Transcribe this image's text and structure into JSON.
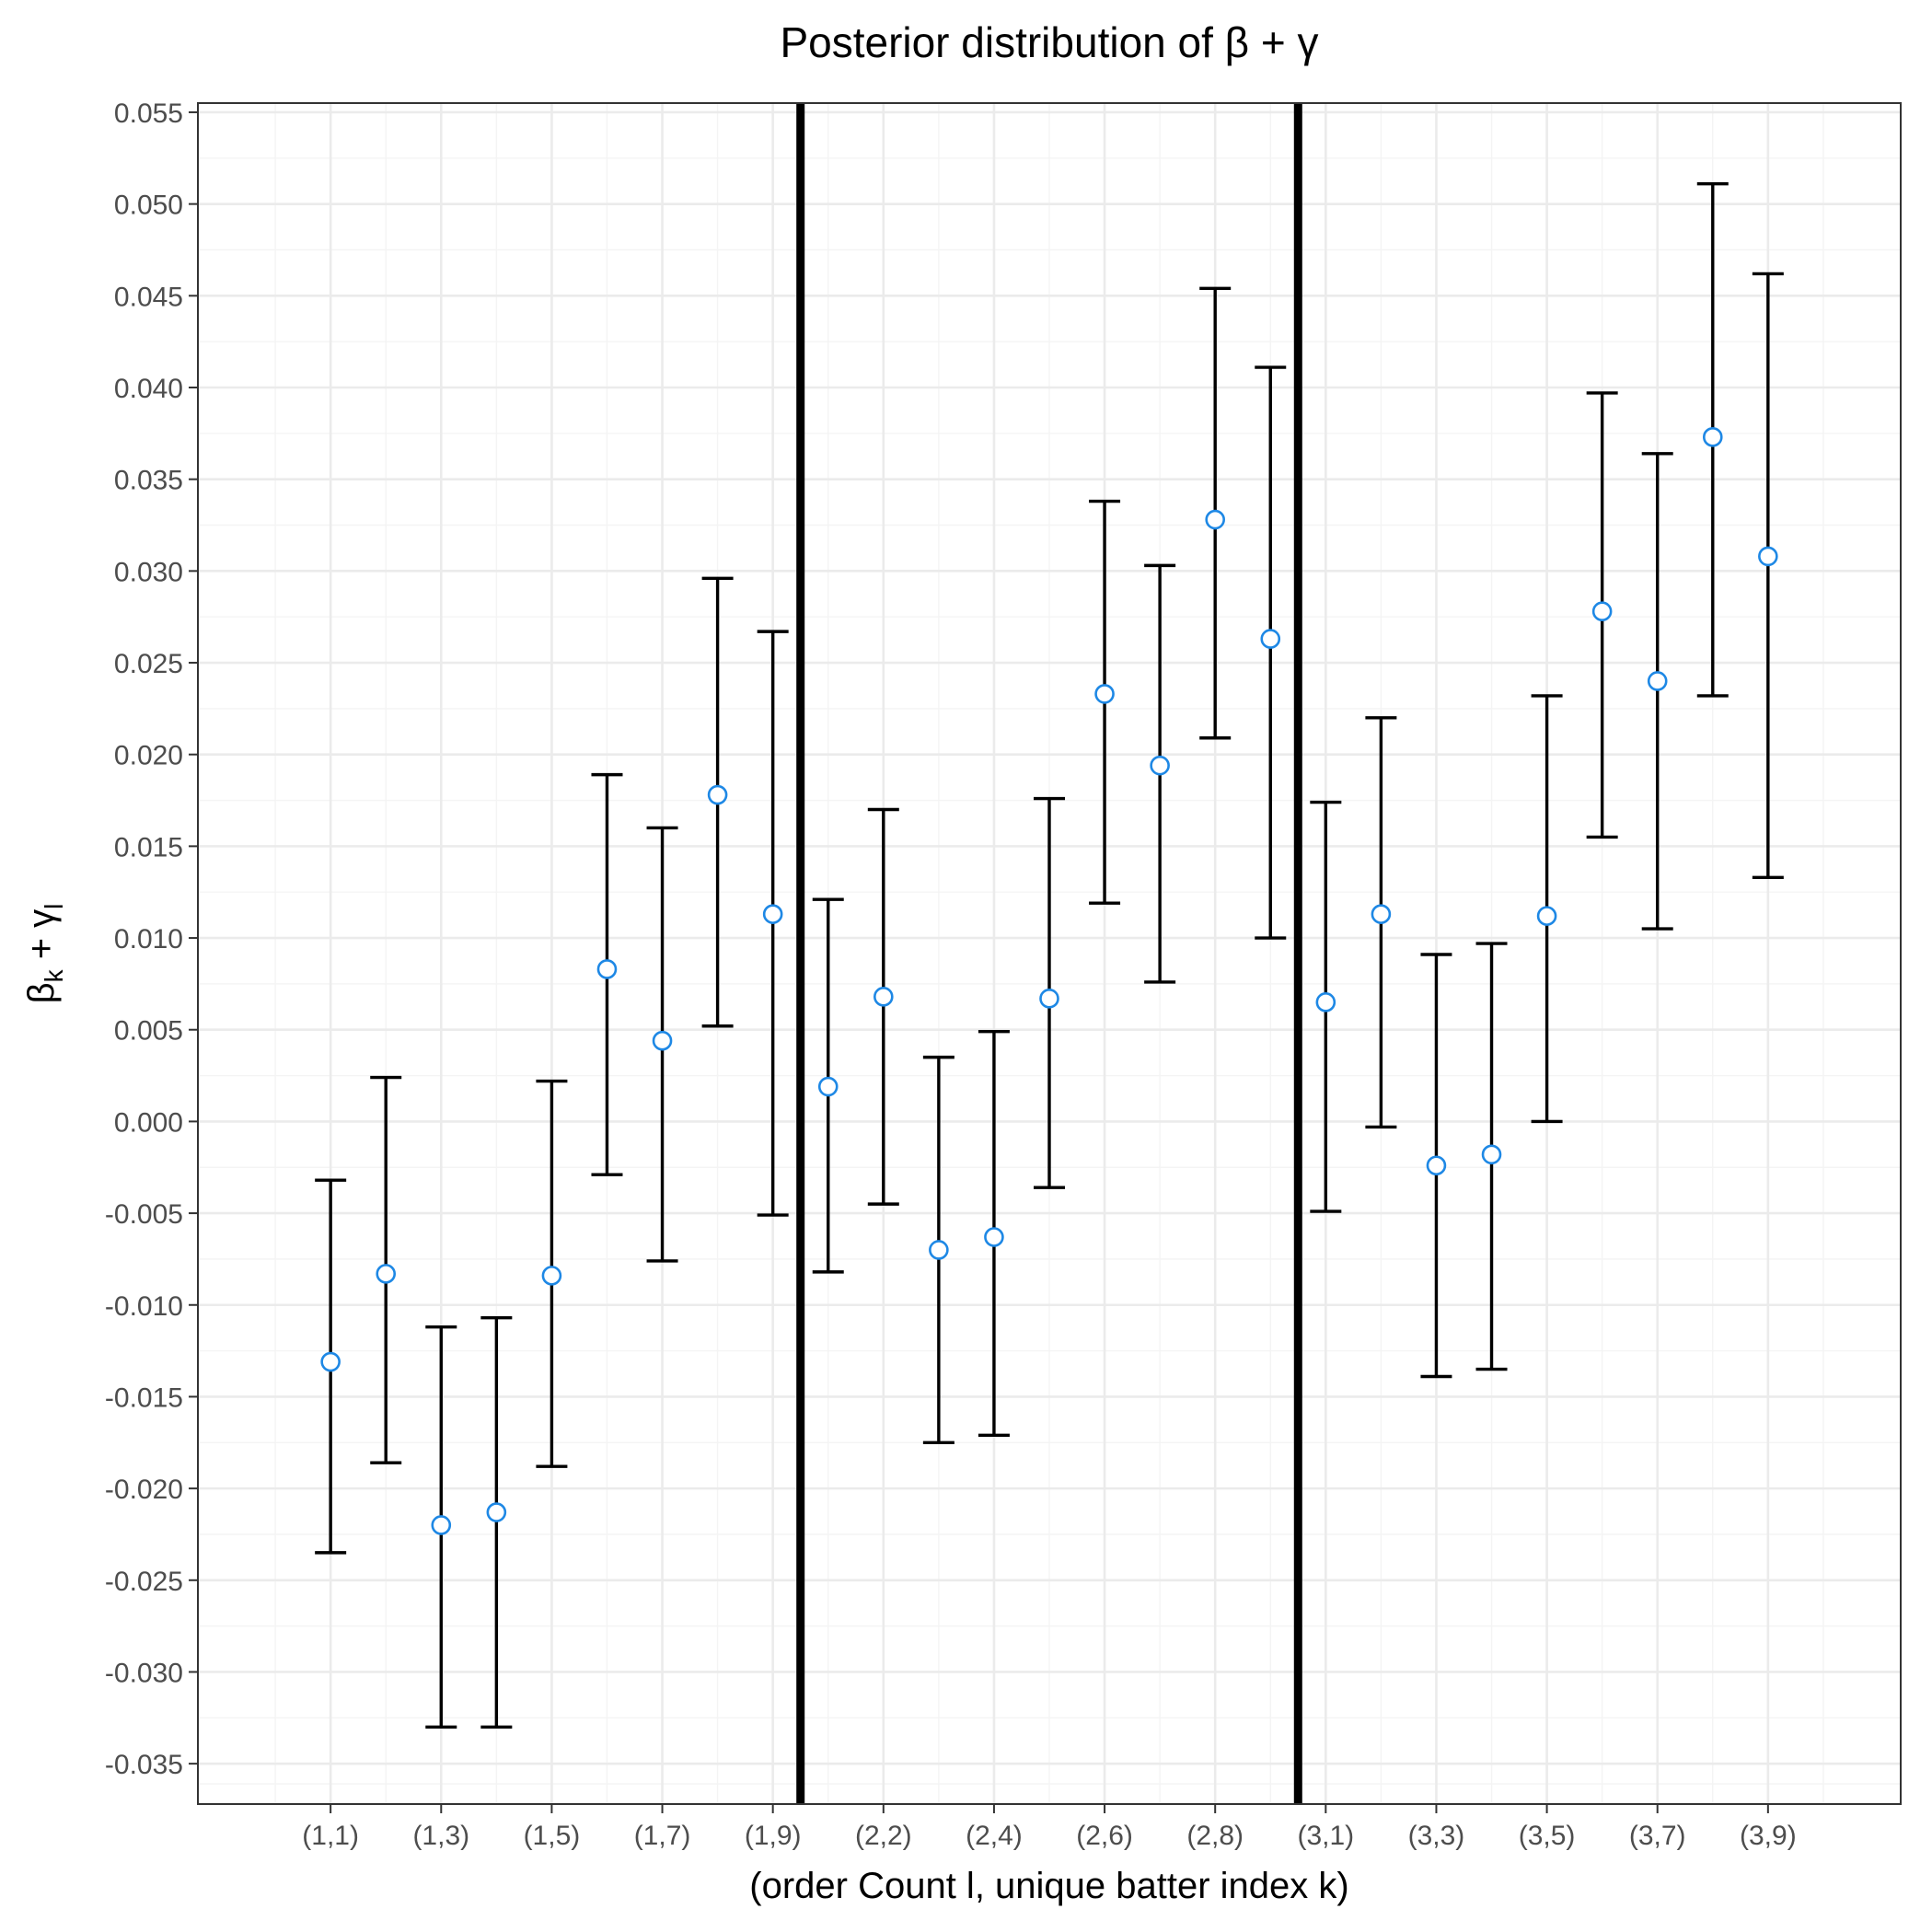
{
  "chart_data": {
    "type": "scatter",
    "title": "Posterior distribution of β + γ",
    "xlabel": "(order Count l, unique batter index k)",
    "ylabel": {
      "base1": "β",
      "sub1": "k",
      "op": " + ",
      "base2": "γ",
      "sub2": "l"
    },
    "ylim": [
      -0.0372,
      0.0555
    ],
    "y_ticks": [
      "-0.035",
      "-0.030",
      "-0.025",
      "-0.020",
      "-0.015",
      "-0.010",
      "-0.005",
      "0.000",
      "0.005",
      "0.010",
      "0.015",
      "0.020",
      "0.025",
      "0.030",
      "0.035",
      "0.040",
      "0.045",
      "0.050",
      "0.055"
    ],
    "x_tick_labels": [
      "(1,1)",
      "(1,3)",
      "(1,5)",
      "(1,7)",
      "(1,9)",
      "(2,2)",
      "(2,4)",
      "(2,6)",
      "(2,8)",
      "(3,1)",
      "(3,3)",
      "(3,5)",
      "(3,7)",
      "(3,9)"
    ],
    "x_tick_positions": [
      1,
      3,
      5,
      7,
      9,
      11,
      13,
      15,
      17,
      19,
      21,
      23,
      25,
      27
    ],
    "xlim": [
      -1.4,
      29.4
    ],
    "vlines": [
      9.5,
      18.5
    ],
    "grid": true,
    "categories": [
      "(1,1)",
      "(1,2)",
      "(1,3)",
      "(1,4)",
      "(1,5)",
      "(1,6)",
      "(1,7)",
      "(1,8)",
      "(1,9)",
      "(2,1)",
      "(2,2)",
      "(2,3)",
      "(2,4)",
      "(2,5)",
      "(2,6)",
      "(2,7)",
      "(2,8)",
      "(2,9)",
      "(3,1)",
      "(3,2)",
      "(3,3)",
      "(3,4)",
      "(3,5)",
      "(3,6)",
      "(3,7)",
      "(3,8)",
      "(3,9)"
    ],
    "x": [
      1,
      2,
      3,
      4,
      5,
      6,
      7,
      8,
      9,
      10,
      11,
      12,
      13,
      14,
      15,
      16,
      17,
      18,
      19,
      20,
      21,
      22,
      23,
      24,
      25,
      26,
      27
    ],
    "mean": [
      -0.0131,
      -0.0083,
      -0.022,
      -0.0213,
      -0.0084,
      0.0083,
      0.0044,
      0.0178,
      0.0113,
      0.0019,
      0.0068,
      -0.007,
      -0.0063,
      0.0067,
      0.0233,
      0.0194,
      0.0328,
      0.0263,
      0.0065,
      0.0113,
      -0.0024,
      -0.0018,
      0.0112,
      0.0278,
      0.024,
      0.0373,
      0.0308
    ],
    "lower": [
      -0.0235,
      -0.0186,
      -0.033,
      -0.033,
      -0.0188,
      -0.0029,
      -0.0076,
      0.0052,
      -0.0051,
      -0.0082,
      -0.0045,
      -0.0175,
      -0.0171,
      -0.0036,
      0.0119,
      0.0076,
      0.0209,
      0.01,
      -0.0049,
      -0.0003,
      -0.0139,
      -0.0135,
      0.0,
      0.0155,
      0.0105,
      0.0232,
      0.0133
    ],
    "upper": [
      -0.0032,
      0.0024,
      -0.0112,
      -0.0107,
      0.0022,
      0.0189,
      0.016,
      0.0296,
      0.0267,
      0.0121,
      0.017,
      0.0035,
      0.0049,
      0.0176,
      0.0338,
      0.0303,
      0.0454,
      0.0411,
      0.0174,
      0.022,
      0.0091,
      0.0097,
      0.0232,
      0.0397,
      0.0364,
      0.0511,
      0.0462
    ],
    "colors": {
      "point_fill": "#ffffff",
      "point_stroke": "#1e88e5",
      "error_bar": "#000000",
      "vline": "#000000",
      "grid_major": "#ebebeb",
      "grid_minor": "#f4f4f4",
      "panel_border": "#333333"
    }
  }
}
